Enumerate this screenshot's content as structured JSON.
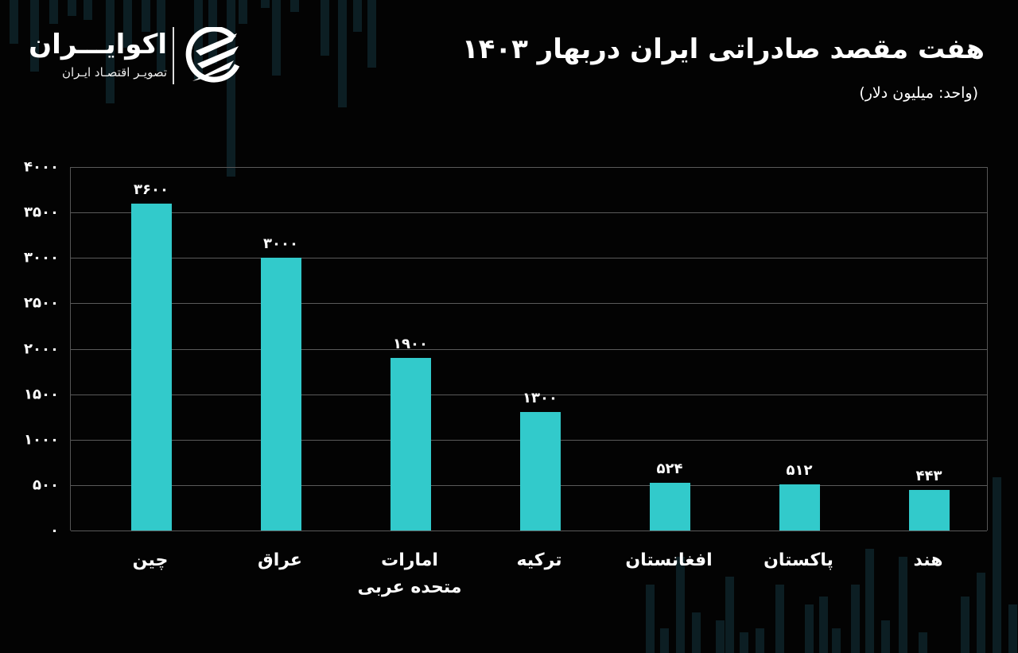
{
  "brand": {
    "name": "اکوایـــران",
    "tagline": "تصویـر اقتصـاد ایـران",
    "logo_icon": "ecoiran-logo-icon"
  },
  "header": {
    "title": "هفت مقصد صادراتی  ایران دربهار ۱۴۰۳",
    "subtitle": "(واحد: میلیون دلار)"
  },
  "colors": {
    "background": "#030303",
    "bar": "#32cacb",
    "grid": "#5a5a5a",
    "text": "#ffffff",
    "decor_bars": "#0c1e23"
  },
  "y_ticks": [
    "۴۰۰۰",
    "۳۵۰۰",
    "۳۰۰۰",
    "۲۵۰۰",
    "۲۰۰۰",
    "۱۵۰۰",
    "۱۰۰۰",
    "۵۰۰",
    "۰"
  ],
  "bars": [
    {
      "label": "چین",
      "value_label": "۳۶۰۰"
    },
    {
      "label": "عراق",
      "value_label": "۳۰۰۰"
    },
    {
      "label": "امارات متحده عربی",
      "value_label": "۱۹۰۰"
    },
    {
      "label": "ترکیه",
      "value_label": "۱۳۰۰"
    },
    {
      "label": "افغانستان",
      "value_label": "۵۲۴"
    },
    {
      "label": "پاکستان",
      "value_label": "۵۱۲"
    },
    {
      "label": "هند",
      "value_label": "۴۴۳"
    }
  ],
  "chart_data": {
    "type": "bar",
    "title": "هفت مقصد صادراتی ایران دربهار ۱۴۰۳",
    "subtitle": "(واحد: میلیون دلار)",
    "categories": [
      "چین",
      "عراق",
      "امارات متحده عربی",
      "ترکیه",
      "افغانستان",
      "پاکستان",
      "هند"
    ],
    "values": [
      3600,
      3000,
      1900,
      1300,
      524,
      512,
      443
    ],
    "xlabel": "",
    "ylabel": "میلیون دلار",
    "ylim": [
      0,
      4000
    ],
    "yticks": [
      0,
      500,
      1000,
      1500,
      2000,
      2500,
      3000,
      3500,
      4000
    ],
    "grid": true,
    "legend": null,
    "data_labels": true
  }
}
